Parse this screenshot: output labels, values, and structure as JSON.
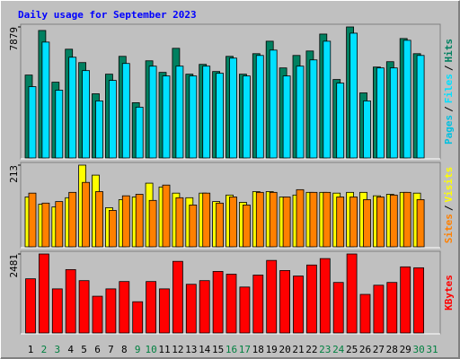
{
  "chart_data": [
    {
      "type": "bar",
      "title": "Daily usage for September 2023",
      "ylim": [
        0,
        7879
      ],
      "yticks": [
        7879
      ],
      "legend": [
        {
          "text": "Pages",
          "color": "#00c0e0"
        },
        {
          "series": 1
        },
        {
          "series": 0
        }
      ],
      "legend_separator": "/",
      "series": [
        {
          "name": "Hits",
          "color": "#008060",
          "values": [
            4985,
            7665,
            4556,
            6539,
            5735,
            3859,
            5038,
            6110,
            3323,
            5842,
            5146,
            6593,
            5038,
            5628,
            5199,
            6110,
            5038,
            6271,
            7021,
            5414,
            6164,
            6432,
            7450,
            4717,
            7879,
            3913,
            5467,
            5789,
            7182,
            6271,
            null
          ]
        },
        {
          "name": "Files",
          "color": "#00e0ff",
          "values": [
            4288,
            6968,
            4074,
            6057,
            5253,
            3430,
            4663,
            5682,
            3055,
            5521,
            4931,
            5521,
            4931,
            5521,
            5092,
            6003,
            4931,
            6164,
            6486,
            4931,
            5521,
            5896,
            7021,
            4502,
            7504,
            3430,
            5414,
            5414,
            7075,
            6164,
            null
          ]
        }
      ]
    },
    {
      "type": "bar",
      "ylim": [
        0,
        213
      ],
      "yticks": [
        213
      ],
      "legend": [
        {
          "series": 1
        },
        {
          "series": 0
        }
      ],
      "legend_separator": "/",
      "series": [
        {
          "name": "Visits",
          "color": "#ffff00",
          "values": [
            130,
            111,
            104,
            128,
            213,
            187,
            102,
            123,
            130,
            166,
            156,
            140,
            128,
            140,
            118,
            135,
            116,
            144,
            144,
            130,
            135,
            142,
            142,
            140,
            142,
            142,
            133,
            137,
            142,
            140,
            null
          ]
        },
        {
          "name": "Sites",
          "color": "#ff8000",
          "values": [
            140,
            114,
            118,
            142,
            168,
            144,
            95,
            133,
            137,
            121,
            161,
            128,
            109,
            140,
            114,
            130,
            109,
            142,
            142,
            130,
            149,
            142,
            142,
            130,
            130,
            123,
            130,
            135,
            142,
            123,
            null
          ]
        }
      ]
    },
    {
      "type": "bar",
      "ylim": [
        0,
        2481
      ],
      "yticks": [
        2481
      ],
      "legend": [
        {
          "series": 0
        }
      ],
      "legend_separator": "/",
      "series": [
        {
          "name": "KBytes",
          "color": "#ff0000",
          "values": [
            1702,
            2481,
            1385,
            1991,
            1644,
            1154,
            1385,
            1616,
            981,
            1616,
            1385,
            2250,
            1529,
            1644,
            1933,
            1846,
            1443,
            1818,
            2279,
            1962,
            1789,
            2135,
            2337,
            1587,
            2481,
            1212,
            1500,
            1587,
            2077,
            2048,
            null
          ]
        }
      ],
      "categories": [
        "1",
        "2",
        "3",
        "4",
        "5",
        "6",
        "7",
        "8",
        "9",
        "10",
        "11",
        "12",
        "13",
        "14",
        "15",
        "16",
        "17",
        "18",
        "19",
        "20",
        "21",
        "22",
        "23",
        "24",
        "25",
        "26",
        "27",
        "28",
        "29",
        "30",
        "31"
      ],
      "category_colors": [
        "#000000",
        "#008040",
        "#008040",
        "#000000",
        "#000000",
        "#000000",
        "#000000",
        "#000000",
        "#008040",
        "#008040",
        "#000000",
        "#000000",
        "#000000",
        "#000000",
        "#000000",
        "#008040",
        "#008040",
        "#000000",
        "#000000",
        "#000000",
        "#000000",
        "#000000",
        "#008040",
        "#008040",
        "#000000",
        "#000000",
        "#000000",
        "#000000",
        "#000000",
        "#008040",
        "#008040"
      ]
    }
  ]
}
